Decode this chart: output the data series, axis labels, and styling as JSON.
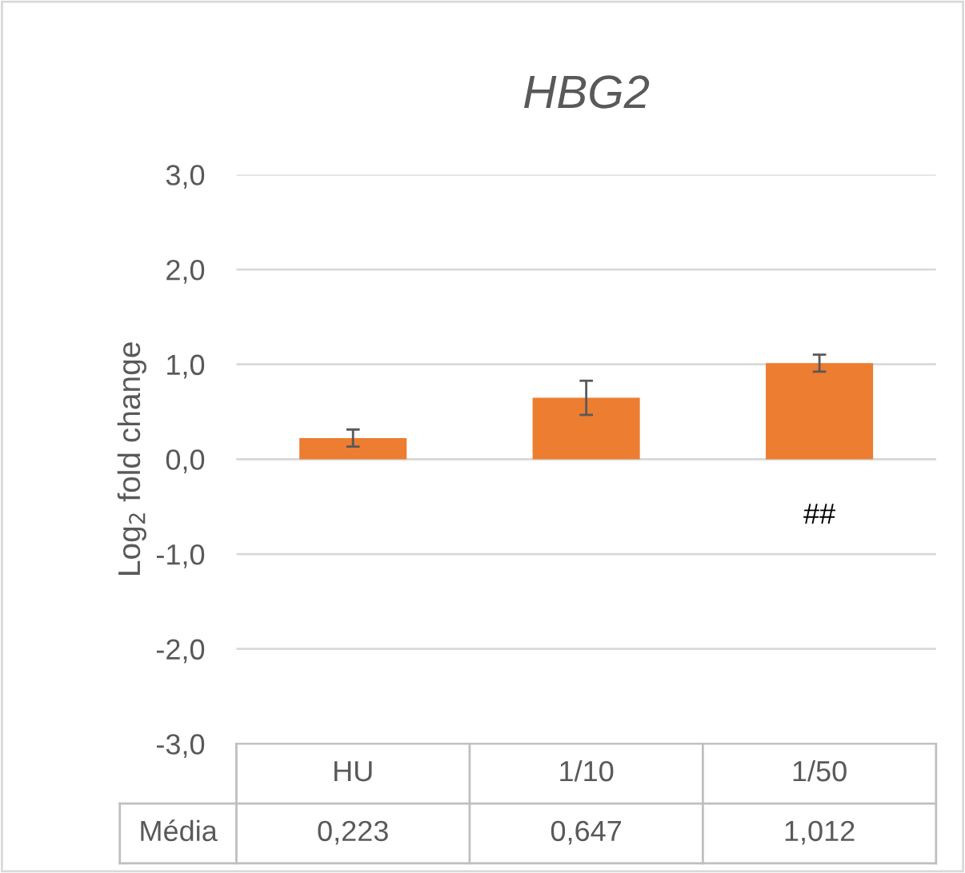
{
  "chart_data": {
    "type": "bar",
    "title": "HBG2",
    "ylabel": "Log$_{2}$ fold change",
    "categories": [
      "HU",
      "1/10",
      "1/50"
    ],
    "series": [
      {
        "name": "Média",
        "color": "#ed7d31",
        "values": [
          0.223,
          0.647,
          1.012
        ],
        "errors": [
          0.09,
          0.18,
          0.09
        ],
        "value_labels": [
          "0,223",
          "0,647",
          "1,012"
        ]
      }
    ],
    "ylim": [
      -3,
      3
    ],
    "yticks": [
      {
        "value": -3,
        "label": "-3,0"
      },
      {
        "value": -2,
        "label": "-2,0"
      },
      {
        "value": -1,
        "label": "-1,0"
      },
      {
        "value": 0,
        "label": "0,0"
      },
      {
        "value": 1,
        "label": "1,0"
      },
      {
        "value": 2,
        "label": "2,0"
      },
      {
        "value": 3,
        "label": "3,0"
      }
    ],
    "grid": "y",
    "annotations": [
      "##"
    ]
  }
}
